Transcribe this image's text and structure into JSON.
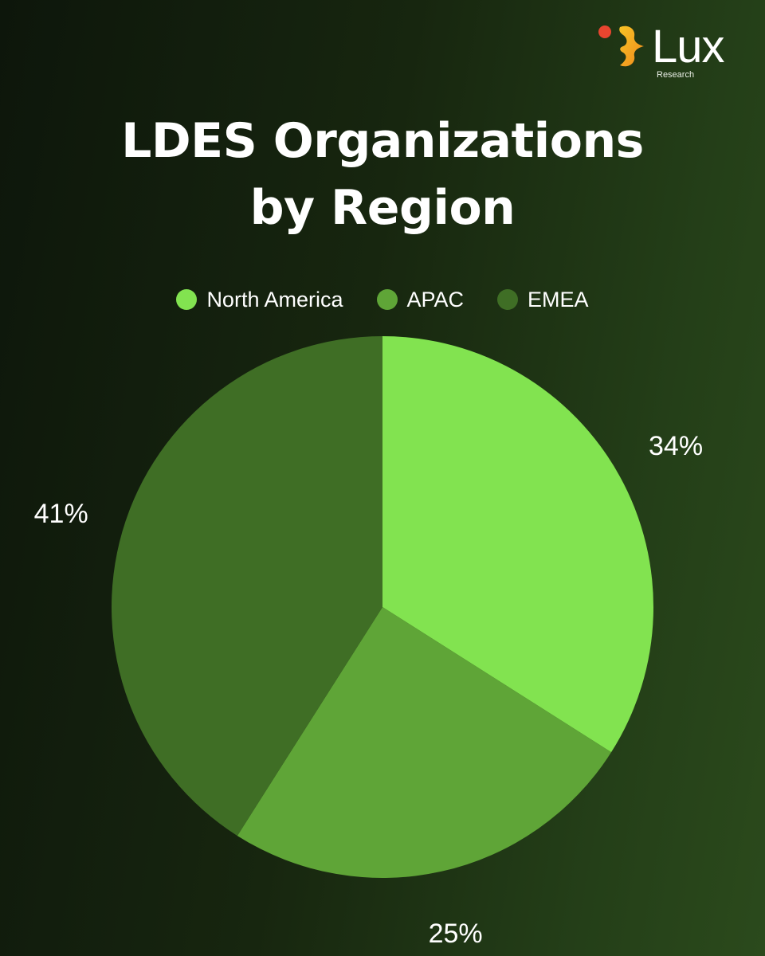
{
  "brand": {
    "name": "Lux",
    "subtitle": "Research",
    "dot_color": "#e8452f",
    "mark_gradient": [
      "#f7c326",
      "#f08a1c"
    ]
  },
  "title_lines": [
    "LDES Organizations",
    "by Region"
  ],
  "chart_data": {
    "type": "pie",
    "title": "LDES Organizations by Region",
    "legend_position": "top-center",
    "start_angle_deg": 0,
    "direction": "clockwise",
    "series": [
      {
        "name": "North America",
        "value": 34,
        "label": "34%",
        "color": "#82e350"
      },
      {
        "name": "APAC",
        "value": 25,
        "label": "25%",
        "color": "#5fa537"
      },
      {
        "name": "EMEA",
        "value": 41,
        "label": "41%",
        "color": "#3f6e25"
      }
    ]
  }
}
